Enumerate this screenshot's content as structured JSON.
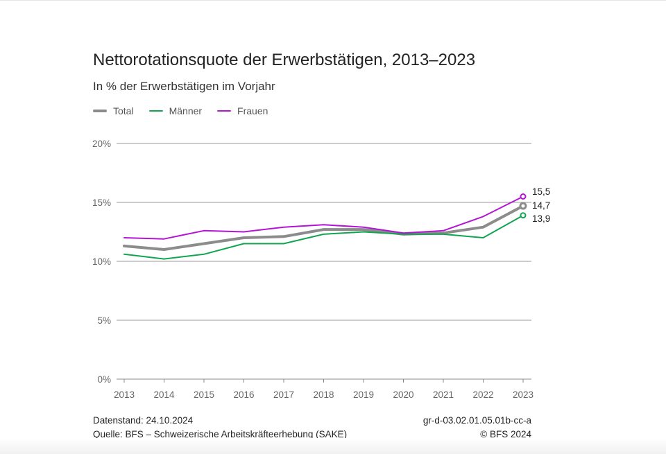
{
  "header": {
    "title": "Nettorotationsquote der Erwerbstätigen, 2013–2023",
    "subtitle": "In % der Erwerbstätigen im Vorjahr"
  },
  "footer": {
    "datenstand": "Datenstand: 24.10.2024",
    "quelle": "Quelle: BFS – Schweizerische Arbeitskräfteerhebung (SAKE)",
    "code": "gr-d-03.02.01.05.01b-cc-a",
    "copyright": "© BFS 2024"
  },
  "chart_data": {
    "type": "line",
    "title": "Nettorotationsquote der Erwerbstätigen, 2013–2023",
    "subtitle": "In % der Erwerbstätigen im Vorjahr",
    "xlabel": "",
    "ylabel": "",
    "x": [
      "2013",
      "2014",
      "2015",
      "2016",
      "2017",
      "2018",
      "2019",
      "2020",
      "2021",
      "2022",
      "2023"
    ],
    "ylim": [
      0,
      20
    ],
    "yticks": [
      0,
      5,
      10,
      15,
      20
    ],
    "ytick_labels": [
      "0%",
      "5%",
      "10%",
      "15%",
      "20%"
    ],
    "grid": "horizontal",
    "legend_position": "top-left",
    "series": [
      {
        "name": "Total",
        "color": "#8c8c8c",
        "values": [
          11.3,
          11.0,
          11.5,
          12.0,
          12.1,
          12.7,
          12.7,
          12.3,
          12.4,
          12.9,
          14.7
        ],
        "end_label": "14,7"
      },
      {
        "name": "Männer",
        "color": "#11a550",
        "values": [
          10.6,
          10.2,
          10.6,
          11.5,
          11.5,
          12.3,
          12.5,
          12.3,
          12.3,
          12.0,
          13.9
        ],
        "end_label": "13,9"
      },
      {
        "name": "Frauen",
        "color": "#b414d4",
        "values": [
          12.0,
          11.9,
          12.6,
          12.5,
          12.9,
          13.1,
          12.9,
          12.4,
          12.6,
          13.8,
          15.5
        ],
        "end_label": "15,5"
      }
    ]
  }
}
